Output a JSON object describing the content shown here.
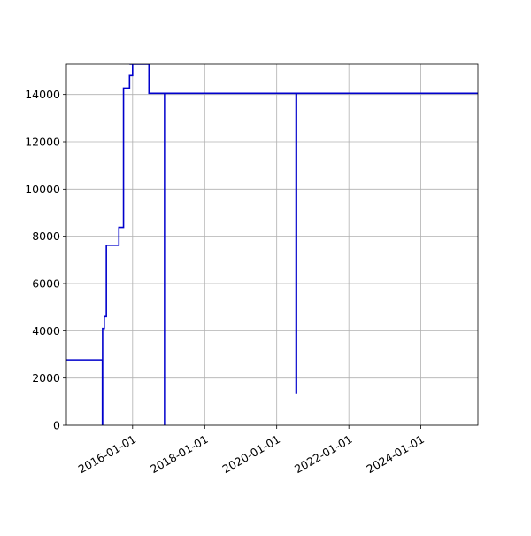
{
  "chart_data": {
    "type": "line",
    "title": "",
    "xlabel": "",
    "ylabel": "",
    "x_axis": {
      "kind": "date",
      "range": [
        "2014-03-01",
        "2025-08-01"
      ],
      "ticks": [
        "2016-01-01",
        "2018-01-01",
        "2020-01-01",
        "2022-01-01",
        "2024-01-01"
      ],
      "tick_labels": [
        "2016-01-01",
        "2018-01-01",
        "2020-01-01",
        "2022-01-01",
        "2024-01-01"
      ]
    },
    "y_axis": {
      "range": [
        0,
        15300
      ],
      "ticks": [
        0,
        2000,
        4000,
        6000,
        8000,
        10000,
        12000,
        14000
      ],
      "tick_labels": [
        "0",
        "2000",
        "4000",
        "6000",
        "8000",
        "10000",
        "12000",
        "14000"
      ]
    },
    "grid": true,
    "legend": "none",
    "series": [
      {
        "color": "#0000cc",
        "points": [
          [
            "2014-03-01",
            2770
          ],
          [
            "2015-03-01",
            2770
          ],
          [
            "2015-03-01",
            0
          ],
          [
            "2015-03-03",
            0
          ],
          [
            "2015-03-03",
            4100
          ],
          [
            "2015-03-20",
            4100
          ],
          [
            "2015-03-20",
            4600
          ],
          [
            "2015-04-10",
            4600
          ],
          [
            "2015-04-10",
            7620
          ],
          [
            "2015-08-15",
            7620
          ],
          [
            "2015-08-15",
            8380
          ],
          [
            "2015-10-01",
            8380
          ],
          [
            "2015-10-01",
            14270
          ],
          [
            "2015-12-01",
            14270
          ],
          [
            "2015-12-01",
            14800
          ],
          [
            "2016-01-01",
            14800
          ],
          [
            "2016-01-01",
            15300
          ],
          [
            "2015-12-01",
            15300
          ],
          [
            "2016-06-15",
            15300
          ],
          [
            "2016-06-15",
            14050
          ],
          [
            "2016-11-20",
            14050
          ],
          [
            "2016-11-20",
            0
          ],
          [
            "2016-11-28",
            0
          ],
          [
            "2016-11-28",
            14050
          ],
          [
            "2020-07-15",
            14050
          ],
          [
            "2020-07-15",
            1350
          ],
          [
            "2020-07-20",
            1350
          ],
          [
            "2020-07-20",
            14050
          ],
          [
            "2025-08-01",
            14050
          ]
        ]
      }
    ]
  }
}
